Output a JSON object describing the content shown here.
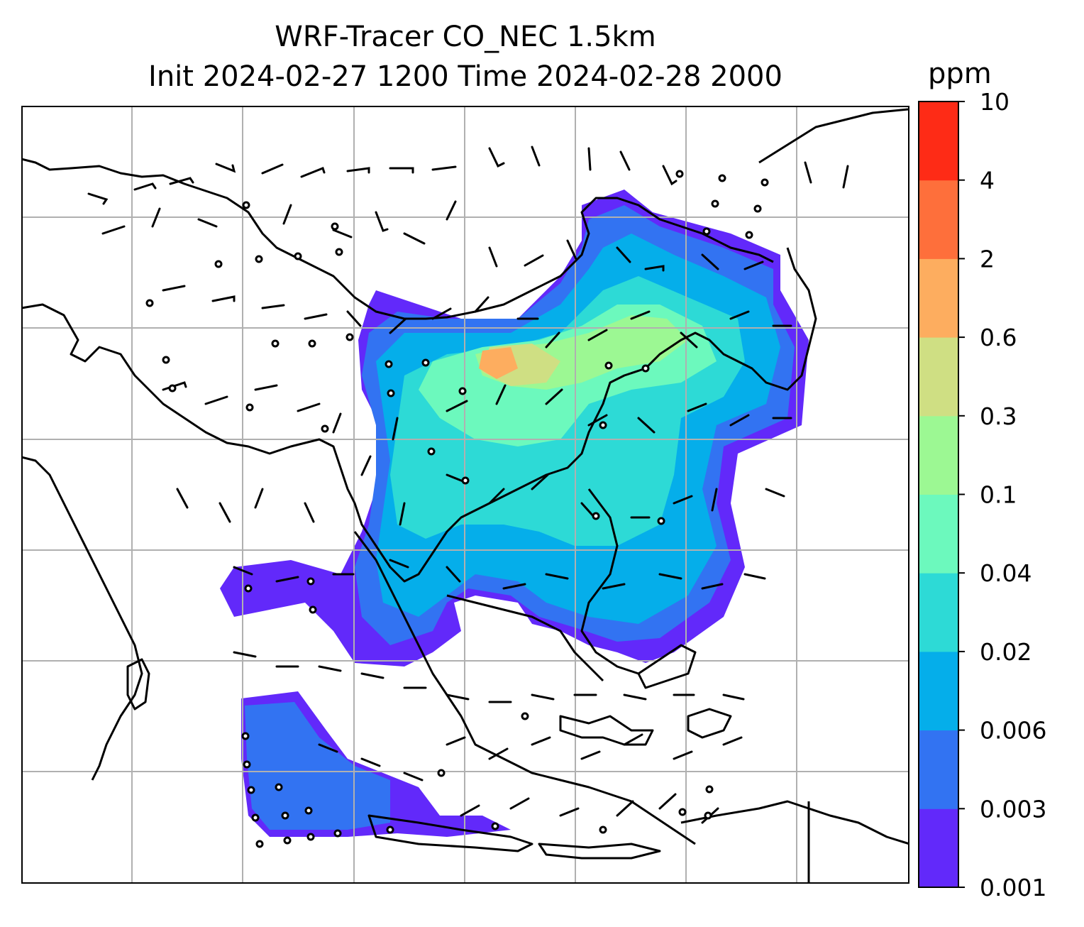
{
  "title": {
    "line1": "WRF-Tracer CO_NEC 1.5km",
    "line2": "Init 2024-02-27 1200 Time 2024-02-28 2000"
  },
  "colorbar": {
    "unit": "ppm",
    "levels": [
      "0.001",
      "0.003",
      "0.006",
      "0.02",
      "0.04",
      "0.1",
      "0.3",
      "0.6",
      "2",
      "4",
      "10"
    ],
    "colors": [
      "#6229fa",
      "#3273f2",
      "#05aeea",
      "#2ddad6",
      "#6cf9bd",
      "#9cf893",
      "#cfdf83",
      "#fdad5f",
      "#fe6f3b",
      "#fe2b16"
    ]
  },
  "map": {
    "gridline_color": "#b0b0b0",
    "coastline_color": "#000000",
    "wind_barbs": "shown",
    "calm_markers": "shown"
  }
}
